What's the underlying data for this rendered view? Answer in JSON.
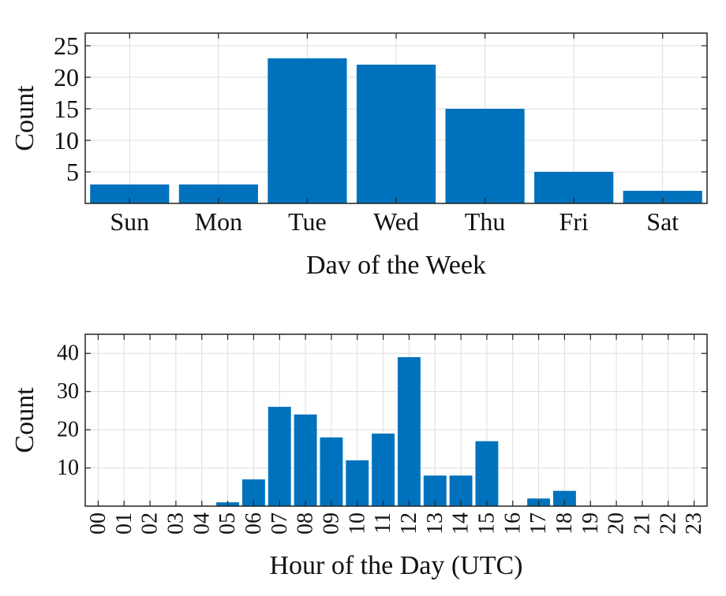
{
  "chart_data": [
    {
      "type": "bar",
      "title": "",
      "xlabel": "Dav of the Week",
      "ylabel": "Count",
      "categories": [
        "Sun",
        "Mon",
        "Tue",
        "Wed",
        "Thu",
        "Fri",
        "Sat"
      ],
      "values": [
        3,
        3,
        23,
        22,
        15,
        5,
        2
      ],
      "ylim": [
        0,
        27
      ],
      "yticks": [
        5,
        10,
        15,
        20,
        25
      ],
      "grid": true,
      "bar_color": "#0072BD"
    },
    {
      "type": "bar",
      "title": "",
      "xlabel": "Hour of the Day (UTC)",
      "ylabel": "Count",
      "categories": [
        "00",
        "01",
        "02",
        "03",
        "04",
        "05",
        "06",
        "07",
        "08",
        "09",
        "10",
        "11",
        "12",
        "13",
        "14",
        "15",
        "16",
        "17",
        "18",
        "19",
        "20",
        "21",
        "22",
        "23"
      ],
      "values": [
        0,
        0,
        0,
        0,
        0,
        1,
        7,
        26,
        24,
        18,
        12,
        19,
        39,
        8,
        8,
        17,
        0,
        2,
        4,
        0,
        0,
        0,
        0,
        0
      ],
      "ylim": [
        0,
        45
      ],
      "yticks": [
        10,
        20,
        30,
        40
      ],
      "grid": true,
      "bar_color": "#0072BD"
    }
  ]
}
